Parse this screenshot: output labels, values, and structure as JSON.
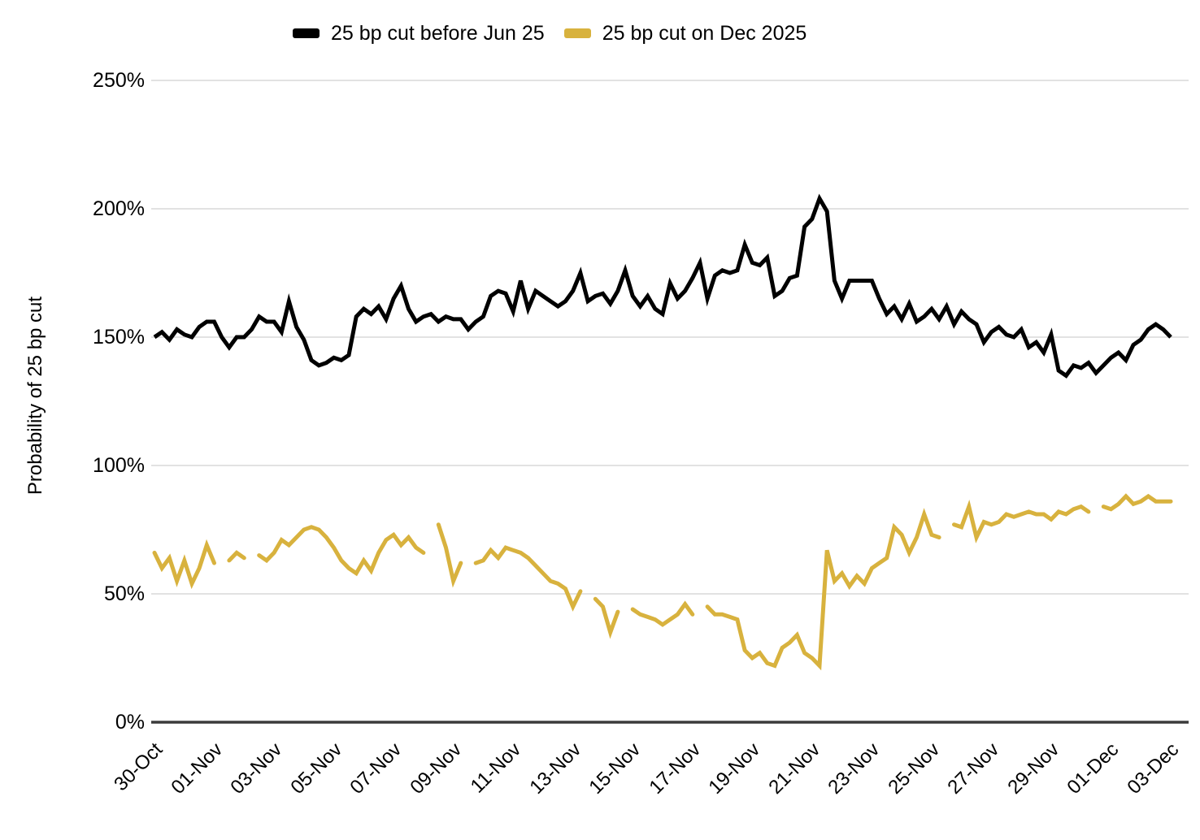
{
  "chart_data": {
    "type": "line",
    "title": "",
    "xlabel": "",
    "ylabel": "Probability of 25 bp cut",
    "ylim": [
      0,
      250
    ],
    "y_ticks": [
      "250%",
      "200%",
      "150%",
      "100%",
      "50%",
      "0%"
    ],
    "y_tick_values": [
      250,
      200,
      150,
      100,
      50,
      0
    ],
    "x_tick_labels": [
      "30-Oct",
      "01-Nov",
      "03-Nov",
      "05-Nov",
      "07-Nov",
      "09-Nov",
      "11-Nov",
      "13-Nov",
      "15-Nov",
      "17-Nov",
      "19-Nov",
      "21-Nov",
      "23-Nov",
      "25-Nov",
      "27-Nov",
      "29-Nov",
      "01-Dec",
      "03-Dec"
    ],
    "x_tick_step_days": 2,
    "x_domain_days": [
      0,
      34
    ],
    "x_step_days": 0.25,
    "grid": "horizontal-gridlines",
    "legend_position": "top",
    "gridline_color": "#d9d9d9",
    "axis_line_color": "#3c3c3c",
    "series": [
      {
        "name": "25 bp cut before Jun 25",
        "color": "#000000",
        "values": [
          150,
          152,
          149,
          153,
          151,
          150,
          154,
          156,
          156,
          150,
          146,
          150,
          150,
          153,
          158,
          156,
          156,
          152,
          164,
          154,
          149,
          141,
          139,
          140,
          142,
          141,
          143,
          158,
          161,
          159,
          162,
          157,
          165,
          170,
          161,
          156,
          158,
          159,
          156,
          158,
          157,
          157,
          153,
          156,
          158,
          166,
          168,
          167,
          160,
          172,
          161,
          168,
          166,
          164,
          162,
          164,
          168,
          175,
          164,
          166,
          167,
          163,
          168,
          176,
          166,
          162,
          166,
          161,
          159,
          171,
          165,
          168,
          173,
          179,
          165,
          174,
          176,
          175,
          176,
          186,
          179,
          178,
          181,
          166,
          168,
          173,
          174,
          193,
          196,
          204,
          199,
          172,
          165,
          172,
          172,
          172,
          172,
          165,
          159,
          162,
          157,
          163,
          156,
          158,
          161,
          157,
          162,
          155,
          160,
          157,
          155,
          148,
          152,
          154,
          151,
          150,
          153,
          146,
          148,
          144,
          151,
          137,
          135,
          139,
          138,
          140,
          136,
          139,
          142,
          144,
          141,
          147,
          149,
          153,
          155,
          153,
          150
        ]
      },
      {
        "name": "25 bp cut on Dec 2025",
        "color": "#D8B23E",
        "values": [
          66,
          60,
          64,
          55,
          63,
          54,
          60,
          69,
          62,
          null,
          63,
          66,
          64,
          null,
          65,
          63,
          66,
          71,
          69,
          72,
          75,
          76,
          75,
          72,
          68,
          63,
          60,
          58,
          63,
          59,
          66,
          71,
          73,
          69,
          72,
          68,
          66,
          null,
          77,
          68,
          55,
          62,
          null,
          62,
          63,
          67,
          64,
          68,
          67,
          66,
          64,
          61,
          58,
          55,
          54,
          52,
          45,
          51,
          null,
          48,
          45,
          35,
          43,
          null,
          44,
          42,
          41,
          40,
          38,
          40,
          42,
          46,
          42,
          null,
          45,
          42,
          42,
          41,
          40,
          28,
          25,
          27,
          23,
          22,
          29,
          31,
          34,
          27,
          25,
          22,
          67,
          55,
          58,
          53,
          57,
          54,
          60,
          62,
          64,
          76,
          73,
          66,
          72,
          81,
          73,
          72,
          null,
          77,
          76,
          84,
          72,
          78,
          77,
          78,
          81,
          80,
          81,
          82,
          81,
          81,
          79,
          82,
          81,
          83,
          84,
          82,
          null,
          84,
          83,
          85,
          88,
          85,
          86,
          88,
          86,
          86,
          86
        ]
      }
    ]
  }
}
